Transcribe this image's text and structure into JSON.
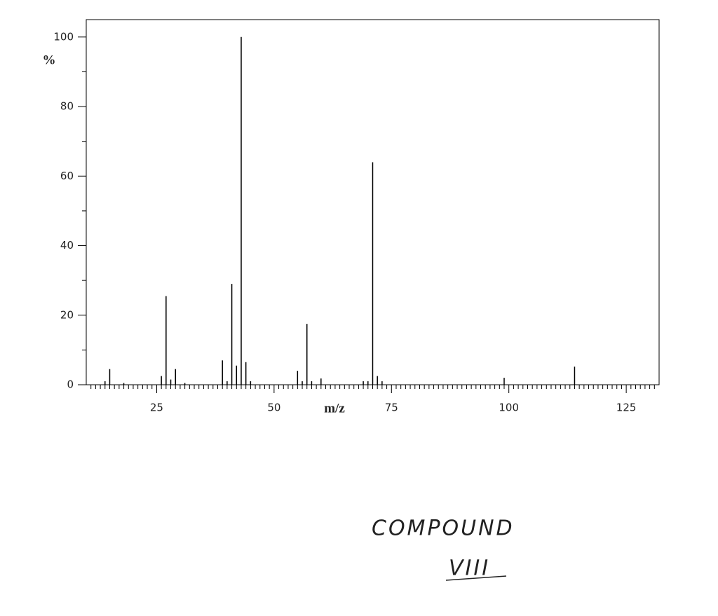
{
  "chart_data": {
    "type": "stick",
    "x_label": "m/z",
    "y_label": "%",
    "x": [
      14,
      15,
      18,
      26,
      27,
      28,
      29,
      31,
      39,
      40,
      41,
      42,
      43,
      44,
      45,
      55,
      56,
      57,
      58,
      60,
      69,
      70,
      71,
      72,
      73,
      99,
      114
    ],
    "values": [
      1,
      4.5,
      0.5,
      2.5,
      25.5,
      1.5,
      4.5,
      0.5,
      7,
      1,
      29,
      5.5,
      100,
      6.5,
      1,
      4,
      1,
      17.5,
      1,
      1.8,
      1,
      1,
      64,
      2.5,
      1,
      2,
      5.2
    ],
    "color": "#000000",
    "xlim": [
      10,
      132
    ],
    "ylim": [
      0,
      105
    ],
    "xticks": [
      25,
      50,
      75,
      100,
      125
    ],
    "xminorticks": [
      11,
      12,
      13,
      14,
      15,
      16,
      17,
      18,
      19,
      20,
      21,
      22,
      23,
      24,
      26,
      27,
      28,
      29,
      30,
      31,
      32,
      33,
      34,
      35,
      36,
      37,
      38,
      39,
      40,
      41,
      42,
      43,
      44,
      45,
      46,
      47,
      48,
      49,
      51,
      52,
      53,
      54,
      55,
      56,
      57,
      58,
      59,
      60,
      61,
      62,
      63,
      64,
      65,
      66,
      67,
      68,
      69,
      70,
      71,
      72,
      73,
      74,
      76,
      77,
      78,
      79,
      80,
      81,
      82,
      83,
      84,
      85,
      86,
      87,
      88,
      89,
      90,
      91,
      92,
      93,
      94,
      95,
      96,
      97,
      98,
      99,
      101,
      102,
      103,
      104,
      105,
      106,
      107,
      108,
      109,
      110,
      111,
      112,
      113,
      114,
      115,
      116,
      117,
      118,
      119,
      120,
      121,
      122,
      123,
      124,
      126,
      127,
      128,
      129,
      130,
      131
    ],
    "yticks": [
      0,
      20,
      40,
      60,
      80,
      100
    ],
    "yminorticks": [
      10,
      30,
      50,
      70,
      90
    ],
    "annotations": [
      "COMPOUND",
      "VIII"
    ]
  }
}
